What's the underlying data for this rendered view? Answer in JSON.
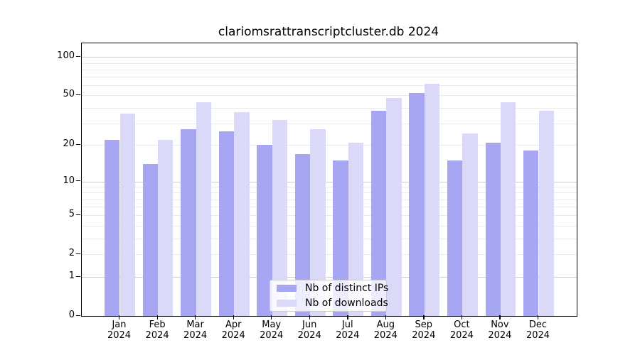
{
  "title": "clariomsrattranscriptcluster.db 2024",
  "chart_data": {
    "type": "bar",
    "title": "clariomsrattranscriptcluster.db 2024",
    "categories": [
      "Jan",
      "Feb",
      "Mar",
      "Apr",
      "May",
      "Jun",
      "Jul",
      "Aug",
      "Sep",
      "Oct",
      "Nov",
      "Dec"
    ],
    "category_year": "2024",
    "series": [
      {
        "name": "Nb of distinct IPs",
        "color": "#a6a6f2",
        "values": [
          22,
          14,
          27,
          26,
          20,
          17,
          15,
          38,
          52,
          15,
          21,
          18
        ]
      },
      {
        "name": "Nb of downloads",
        "color": "#dadaf8",
        "values": [
          36,
          22,
          44,
          37,
          32,
          27,
          21,
          48,
          62,
          25,
          44,
          38
        ]
      }
    ],
    "yscale": "log1p",
    "ylim": [
      0,
      128
    ],
    "yticks": [
      0,
      1,
      2,
      5,
      10,
      20,
      50,
      100
    ],
    "grid": {
      "minor_values": [
        2,
        3,
        4,
        5,
        6,
        7,
        8,
        9,
        20,
        30,
        40,
        50,
        60,
        70,
        80,
        90
      ],
      "major_values": [
        1,
        10,
        100
      ],
      "minor_color": "#ebebeb",
      "major_color": "#cccccc"
    },
    "legend_position": "lower center",
    "axis_color": "#000000",
    "background_color": "#ffffff"
  }
}
